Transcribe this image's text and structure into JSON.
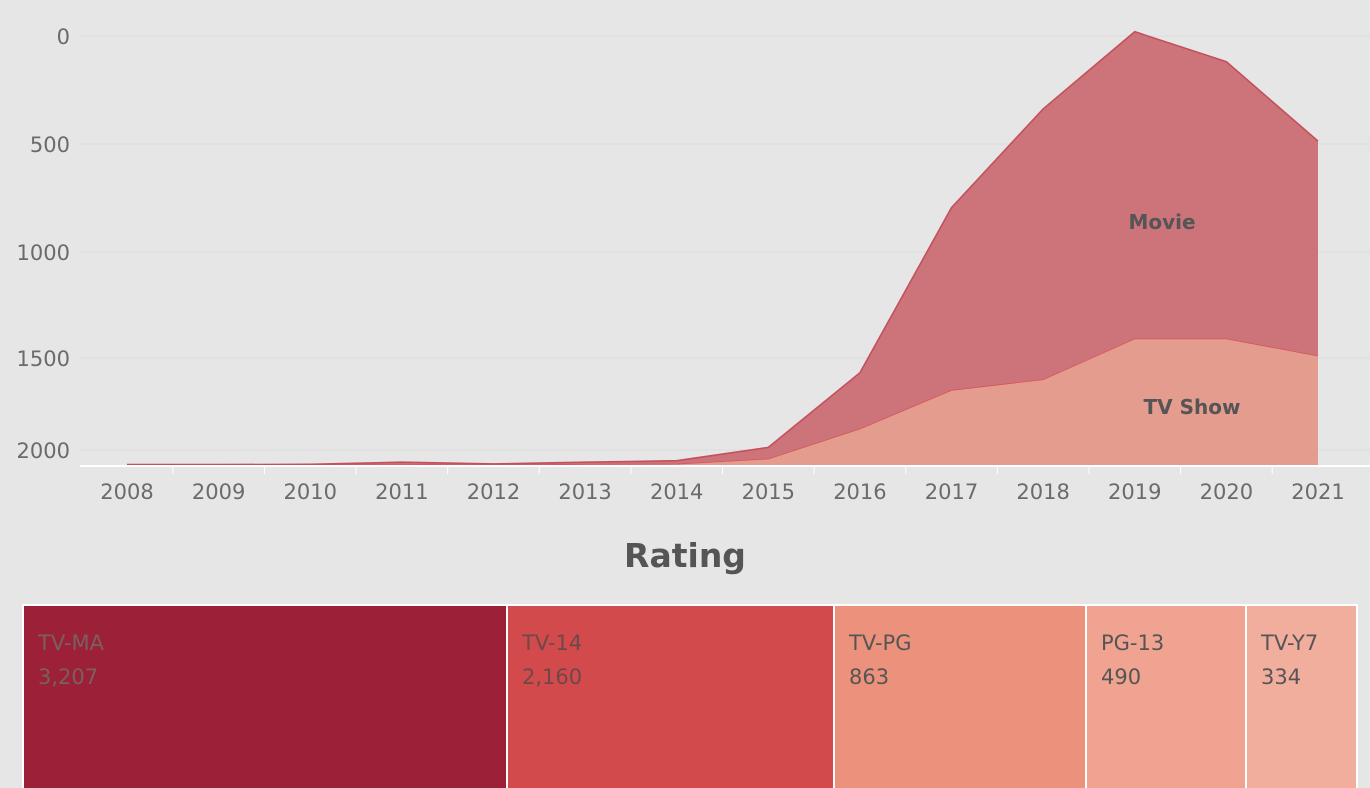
{
  "chart_data": [
    {
      "type": "area",
      "stacked": true,
      "x": [
        2008,
        2009,
        2010,
        2011,
        2012,
        2013,
        2014,
        2015,
        2016,
        2017,
        2018,
        2019,
        2020,
        2021
      ],
      "xticks": [
        "2008",
        "2009",
        "2010",
        "2011",
        "2012",
        "2013",
        "2014",
        "2015",
        "2016",
        "2017",
        "2018",
        "2019",
        "2020",
        "2021"
      ],
      "yticks": [
        "0",
        "500",
        "1000",
        "1500",
        "2000"
      ],
      "ylim": [
        -80,
        2100
      ],
      "grid": true,
      "series": [
        {
          "name": "TV Show",
          "color": "#e39c8e",
          "line_color": "#d9535a",
          "values": [
            1,
            1,
            1,
            5,
            1,
            5,
            6,
            30,
            170,
            350,
            400,
            590,
            590,
            510
          ]
        },
        {
          "name": "Movie",
          "color": "#cc7479",
          "line_color": "#c4505d",
          "values": [
            1,
            1,
            2,
            8,
            4,
            8,
            14,
            52,
            260,
            850,
            1260,
            1430,
            1290,
            1000
          ]
        }
      ]
    },
    {
      "type": "treemap",
      "title": "Rating",
      "items": [
        {
          "label": "TV-MA",
          "value": 3207,
          "display": "3,207",
          "color": "#9c2138",
          "text_color": "#7a5f5f"
        },
        {
          "label": "TV-14",
          "value": 2160,
          "display": "2,160",
          "color": "#d24a4b",
          "text_color": "#6e4848"
        },
        {
          "label": "TV-PG",
          "value": 863,
          "display": "863",
          "color": "#ec927c",
          "text_color": "#555555"
        },
        {
          "label": "PG-13",
          "value": 490,
          "display": "490",
          "color": "#f0a391",
          "text_color": "#555555"
        },
        {
          "label": "TV-Y7",
          "value": 334,
          "display": "334",
          "color": "#f1ae9d",
          "text_color": "#555555"
        }
      ]
    }
  ]
}
